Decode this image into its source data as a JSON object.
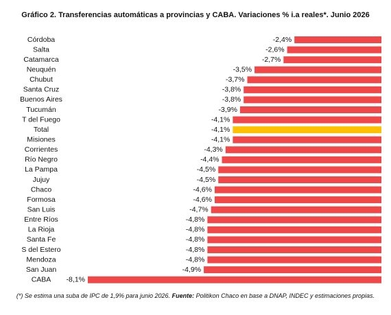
{
  "chart_data": {
    "type": "barh",
    "title": "Gráfico 2. Transferencias automáticas a provincias y CABA. Variaciones % i.a reales*. Junio 2026",
    "categories": [
      "Córdoba",
      "Salta",
      "Catamarca",
      "Neuquén",
      "Chubut",
      "Santa Cruz",
      "Buenos Aires",
      "Tucumán",
      "T del Fuego",
      "Total",
      "Misiones",
      "Corrientes",
      "Río Negro",
      "La Pampa",
      "Jujuy",
      "Chaco",
      "Formosa",
      "San Luis",
      "Entre Ríos",
      "La Rioja",
      "Santa Fe",
      "S del Estero",
      "Mendoza",
      "San Juan",
      "CABA"
    ],
    "values": [
      -2.4,
      -2.6,
      -2.7,
      -3.5,
      -3.7,
      -3.8,
      -3.8,
      -3.9,
      -4.1,
      -4.1,
      -4.1,
      -4.3,
      -4.4,
      -4.5,
      -4.5,
      -4.6,
      -4.6,
      -4.7,
      -4.8,
      -4.8,
      -4.8,
      -4.8,
      -4.8,
      -4.9,
      -8.1
    ],
    "value_labels": [
      "-2,4%",
      "-2,6%",
      "-2,7%",
      "-3,5%",
      "-3,7%",
      "-3,8%",
      "-3,8%",
      "-3,9%",
      "-4,1%",
      "-4,1%",
      "-4,1%",
      "-4,3%",
      "-4,4%",
      "-4,5%",
      "-4,5%",
      "-4,6%",
      "-4,6%",
      "-4,7%",
      "-4,8%",
      "-4,8%",
      "-4,8%",
      "-4,8%",
      "-4,8%",
      "-4,9%",
      "-8,1%"
    ],
    "colors": [
      "#f04848",
      "#f04848",
      "#f04848",
      "#f04848",
      "#f04848",
      "#f04848",
      "#f04848",
      "#f04848",
      "#f04848",
      "#ffc000",
      "#f04848",
      "#f04848",
      "#f04848",
      "#f04848",
      "#f04848",
      "#f04848",
      "#f04848",
      "#f04848",
      "#f04848",
      "#f04848",
      "#f04848",
      "#f04848",
      "#f04848",
      "#f04848",
      "#f04848"
    ],
    "xlim": [
      -8.1,
      0
    ],
    "footnote": {
      "note": "(*) Se estima una suba de IPC de 1,9% para junio 2026.",
      "source_label": "Fuente:",
      "source": "Politikon Chaco en base a DNAP, INDEC y estimaciones propias."
    }
  }
}
